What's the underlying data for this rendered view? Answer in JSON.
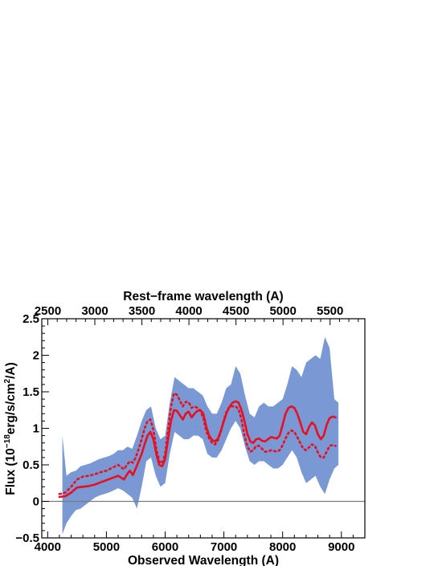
{
  "chart_data": {
    "type": "line",
    "title": "",
    "xlabel": "Observed Wavelength (A)",
    "ylabel": "Flux (10^-18 erg/s/cm^2/A)",
    "ylabel_parts": {
      "pre": "Flux (10",
      "exp1": "−18",
      "mid": "erg/s/cm",
      "exp2": "2",
      "post": "/A)"
    },
    "top_xlabel": "Rest−frame wavelength (A)",
    "xlim": [
      3900,
      9400
    ],
    "ylim": [
      -0.5,
      2.5
    ],
    "rest_xlim": [
      2436,
      5870
    ],
    "x_ticks": [
      4000,
      5000,
      6000,
      7000,
      8000,
      9000
    ],
    "x_tick_labels": [
      "4000",
      "5000",
      "6000",
      "7000",
      "8000",
      "9000"
    ],
    "y_ticks": [
      -0.5,
      0,
      0.5,
      1,
      1.5,
      2,
      2.5
    ],
    "y_tick_labels": [
      "−0.5",
      "0",
      "0.5",
      "1",
      "1.5",
      "2",
      "2.5"
    ],
    "top_x_ticks": [
      2500,
      3000,
      3500,
      4000,
      4500,
      5000,
      5500
    ],
    "top_x_tick_labels": [
      "2500",
      "3000",
      "3500",
      "4000",
      "4500",
      "5000",
      "5500"
    ],
    "zero_line": 0,
    "grid": false,
    "colors": {
      "observed": "#7a98d4",
      "model": "#e81020",
      "zero": "#7a7a7a",
      "axes": "#000000"
    },
    "series": [
      {
        "style": "solid",
        "x": [
          4200,
          4300,
          4400,
          4500,
          4600,
          4700,
          4800,
          4900,
          5000,
          5100,
          5200,
          5300,
          5350,
          5400,
          5450,
          5500,
          5550,
          5600,
          5650,
          5700,
          5750,
          5800,
          5850,
          5900,
          5950,
          6000,
          6050,
          6100,
          6150,
          6200,
          6250,
          6300,
          6350,
          6400,
          6450,
          6500,
          6550,
          6600,
          6650,
          6700,
          6750,
          6800,
          6850,
          6900,
          6950,
          7000,
          7050,
          7100,
          7150,
          7200,
          7250,
          7300,
          7350,
          7400,
          7450,
          7500,
          7550,
          7600,
          7650,
          7700,
          7750,
          7800,
          7850,
          7900,
          7950,
          8000,
          8050,
          8100,
          8150,
          8200,
          8250,
          8300,
          8350,
          8400,
          8450,
          8500,
          8550,
          8600,
          8650,
          8700,
          8750,
          8800,
          8850,
          8900
        ],
        "y": [
          0.06,
          0.07,
          0.12,
          0.19,
          0.2,
          0.21,
          0.23,
          0.26,
          0.29,
          0.32,
          0.35,
          0.3,
          0.37,
          0.42,
          0.36,
          0.45,
          0.55,
          0.65,
          0.78,
          0.9,
          0.95,
          0.85,
          0.65,
          0.5,
          0.48,
          0.58,
          0.85,
          1.1,
          1.25,
          1.24,
          1.18,
          1.12,
          1.2,
          1.23,
          1.15,
          1.2,
          1.24,
          1.25,
          1.2,
          1.02,
          0.9,
          0.84,
          0.82,
          0.86,
          0.97,
          1.1,
          1.22,
          1.3,
          1.35,
          1.37,
          1.35,
          1.25,
          1.1,
          0.92,
          0.82,
          0.8,
          0.85,
          0.86,
          0.83,
          0.82,
          0.85,
          0.88,
          0.87,
          0.86,
          0.9,
          1.05,
          1.2,
          1.28,
          1.3,
          1.28,
          1.2,
          1.08,
          0.95,
          0.92,
          1.02,
          1.08,
          1.04,
          0.92,
          0.85,
          0.9,
          1.05,
          1.14,
          1.16,
          1.15
        ]
      },
      {
        "style": "dotted",
        "x": [
          4200,
          4300,
          4400,
          4500,
          4600,
          4700,
          4800,
          4900,
          5000,
          5100,
          5200,
          5300,
          5350,
          5400,
          5450,
          5500,
          5550,
          5600,
          5650,
          5700,
          5750,
          5800,
          5850,
          5900,
          5950,
          6000,
          6050,
          6100,
          6150,
          6200,
          6250,
          6300,
          6350,
          6400,
          6450,
          6500,
          6550,
          6600,
          6650,
          6700,
          6750,
          6800,
          6850,
          6900,
          6950,
          7000,
          7050,
          7100,
          7150,
          7200,
          7250,
          7300,
          7350,
          7400,
          7450,
          7500,
          7550,
          7600,
          7650,
          7700,
          7750,
          7800,
          7850,
          7900,
          7950,
          8000,
          8050,
          8100,
          8150,
          8200,
          8250,
          8300,
          8350,
          8400,
          8450,
          8500,
          8550,
          8600,
          8650,
          8700,
          8750,
          8800,
          8850,
          8900
        ],
        "y": [
          0.1,
          0.12,
          0.2,
          0.3,
          0.34,
          0.35,
          0.37,
          0.4,
          0.42,
          0.46,
          0.5,
          0.44,
          0.5,
          0.55,
          0.53,
          0.6,
          0.72,
          0.85,
          1.0,
          1.1,
          1.12,
          0.98,
          0.72,
          0.55,
          0.52,
          0.65,
          0.98,
          1.3,
          1.48,
          1.46,
          1.38,
          1.3,
          1.36,
          1.36,
          1.28,
          1.3,
          1.28,
          1.24,
          1.14,
          0.96,
          0.86,
          0.8,
          0.78,
          0.84,
          0.96,
          1.12,
          1.24,
          1.3,
          1.3,
          1.3,
          1.26,
          1.12,
          0.9,
          0.75,
          0.68,
          0.7,
          0.76,
          0.76,
          0.72,
          0.68,
          0.68,
          0.7,
          0.69,
          0.68,
          0.7,
          0.77,
          0.86,
          0.94,
          0.97,
          0.95,
          0.88,
          0.8,
          0.72,
          0.7,
          0.74,
          0.78,
          0.76,
          0.67,
          0.6,
          0.6,
          0.68,
          0.76,
          0.77,
          0.76
        ]
      }
    ],
    "observed_band": {
      "x": [
        4250,
        4320,
        4400,
        4480,
        4560,
        4640,
        4720,
        4800,
        4880,
        4960,
        5040,
        5120,
        5200,
        5280,
        5360,
        5440,
        5520,
        5600,
        5680,
        5760,
        5840,
        5920,
        6000,
        6080,
        6160,
        6240,
        6320,
        6400,
        6480,
        6560,
        6640,
        6720,
        6800,
        6880,
        6960,
        7040,
        7120,
        7200,
        7280,
        7360,
        7440,
        7520,
        7600,
        7680,
        7760,
        7840,
        7920,
        8000,
        8080,
        8160,
        8240,
        8320,
        8400,
        8480,
        8560,
        8640,
        8720,
        8800,
        8880,
        8950
      ],
      "low": [
        -0.45,
        -0.3,
        -0.2,
        -0.12,
        -0.1,
        -0.05,
        0.0,
        0.05,
        0.08,
        0.1,
        0.12,
        0.15,
        0.18,
        0.15,
        0.1,
        0.05,
        -0.1,
        0.2,
        0.55,
        0.6,
        0.35,
        0.2,
        0.25,
        0.65,
        0.95,
        0.9,
        0.85,
        0.85,
        0.9,
        0.9,
        0.85,
        0.65,
        0.6,
        0.6,
        0.7,
        0.85,
        1.0,
        1.1,
        1.0,
        0.75,
        0.55,
        0.5,
        0.55,
        0.55,
        0.5,
        0.45,
        0.45,
        0.5,
        0.6,
        0.7,
        0.6,
        0.4,
        0.25,
        0.3,
        0.35,
        0.2,
        0.1,
        0.3,
        0.45,
        0.5
      ],
      "high": [
        0.9,
        0.35,
        0.4,
        0.42,
        0.48,
        0.5,
        0.52,
        0.55,
        0.58,
        0.6,
        0.62,
        0.65,
        0.7,
        0.7,
        0.75,
        0.72,
        0.9,
        1.1,
        1.25,
        1.3,
        1.0,
        0.85,
        0.9,
        1.35,
        1.7,
        1.65,
        1.6,
        1.55,
        1.55,
        1.5,
        1.45,
        1.3,
        1.2,
        1.2,
        1.35,
        1.55,
        1.6,
        1.85,
        1.75,
        1.45,
        1.2,
        1.15,
        1.3,
        1.35,
        1.3,
        1.3,
        1.35,
        1.4,
        1.6,
        1.85,
        1.8,
        1.7,
        1.9,
        1.95,
        2.0,
        1.95,
        2.25,
        2.1,
        1.4,
        1.35
      ]
    }
  }
}
